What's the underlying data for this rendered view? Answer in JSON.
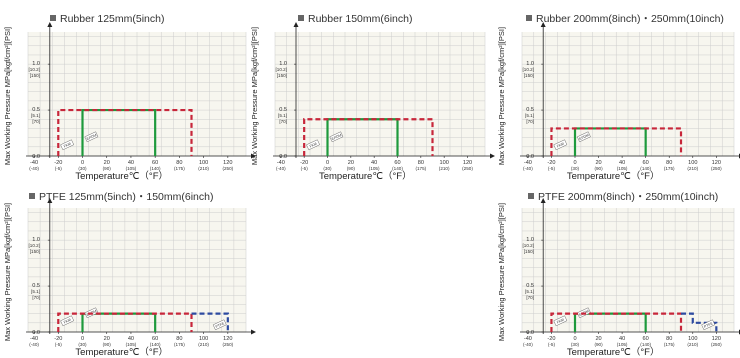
{
  "colors": {
    "grid": "#cdcdcd",
    "plot_bg": "#f7f6ef",
    "axis": "#222222",
    "green": "#1e9a3c",
    "red": "#c7263a",
    "blue": "#2d4aa0",
    "bullet": "#666666"
  },
  "axis_text": {
    "ylabel": "Max Working Pressure MPa[kgf/cm²][PSI]",
    "xlabel": "Temperature℃（°F）",
    "y_ticks": [
      {
        "v": 1.0,
        "l1": "1.0",
        "l2": "[10.2]",
        "l3": "[150]"
      },
      {
        "v": 0.5,
        "l1": "0.5",
        "l2": "[5.1]",
        "l3": "[70]"
      },
      {
        "v": 0.0,
        "l1": "0.0",
        "l2": "",
        "l3": ""
      }
    ],
    "x_ticks": [
      {
        "v": -40,
        "l1": "-40",
        "l2": "(-40)"
      },
      {
        "v": -20,
        "l1": "-20",
        "l2": "(-5)"
      },
      {
        "v": 0,
        "l1": "0",
        "l2": "(30)"
      },
      {
        "v": 20,
        "l1": "20",
        "l2": "(90)"
      },
      {
        "v": 40,
        "l1": "40",
        "l2": "(105)"
      },
      {
        "v": 60,
        "l1": "60",
        "l2": "(140)"
      },
      {
        "v": 80,
        "l1": "80",
        "l2": "(175)"
      },
      {
        "v": 100,
        "l1": "100",
        "l2": "(210)"
      },
      {
        "v": 120,
        "l1": "120",
        "l2": "(250)"
      }
    ]
  },
  "material_labels": {
    "green": "EPDM",
    "red": "FKM",
    "blue": "PTFE"
  },
  "chart_data": [
    {
      "type": "line",
      "title": "Rubber 125mm(5inch)",
      "xlim": [
        -45,
        135
      ],
      "ylim": [
        0,
        1.35
      ],
      "series": [
        {
          "color": "green",
          "style": "solid",
          "x": [
            0,
            0,
            60,
            60
          ],
          "y": [
            0,
            0.5,
            0.5,
            0
          ]
        },
        {
          "color": "red",
          "style": "dashed",
          "x": [
            -20,
            -20,
            90,
            90
          ],
          "y": [
            0,
            0.5,
            0.5,
            0
          ]
        }
      ]
    },
    {
      "type": "line",
      "title": "Rubber 150mm(6inch)",
      "xlim": [
        -45,
        135
      ],
      "ylim": [
        0,
        1.35
      ],
      "series": [
        {
          "color": "green",
          "style": "solid",
          "x": [
            0,
            0,
            60,
            60
          ],
          "y": [
            0,
            0.4,
            0.4,
            0
          ]
        },
        {
          "color": "red",
          "style": "dashed",
          "x": [
            -20,
            -20,
            90,
            90
          ],
          "y": [
            0,
            0.4,
            0.4,
            0
          ]
        }
      ]
    },
    {
      "type": "line",
      "title": "Rubber 200mm(8inch)・250mm(10inch)",
      "xlim": [
        -45,
        135
      ],
      "ylim": [
        0,
        1.35
      ],
      "series": [
        {
          "color": "green",
          "style": "solid",
          "x": [
            0,
            0,
            60,
            60
          ],
          "y": [
            0,
            0.3,
            0.3,
            0
          ]
        },
        {
          "color": "red",
          "style": "dashed",
          "x": [
            -20,
            -20,
            90,
            90
          ],
          "y": [
            0,
            0.3,
            0.3,
            0
          ]
        }
      ]
    },
    {
      "type": "line",
      "title": "PTFE 125mm(5inch)・150mm(6inch)",
      "xlim": [
        -45,
        135
      ],
      "ylim": [
        0,
        1.35
      ],
      "series": [
        {
          "color": "green",
          "style": "solid",
          "x": [
            0,
            0,
            60,
            60
          ],
          "y": [
            0,
            0.2,
            0.2,
            0
          ]
        },
        {
          "color": "red",
          "style": "dashed",
          "x": [
            -20,
            -20,
            90,
            90
          ],
          "y": [
            0,
            0.2,
            0.2,
            0
          ]
        },
        {
          "color": "blue",
          "style": "dashed",
          "x": [
            90,
            120,
            120
          ],
          "y": [
            0.2,
            0.2,
            0
          ]
        }
      ]
    },
    {
      "type": "line",
      "title": "PTFE 200mm(8inch)・250mm(10inch)",
      "xlim": [
        -45,
        135
      ],
      "ylim": [
        0,
        1.35
      ],
      "series": [
        {
          "color": "green",
          "style": "solid",
          "x": [
            0,
            0,
            60,
            60
          ],
          "y": [
            0,
            0.2,
            0.2,
            0
          ]
        },
        {
          "color": "red",
          "style": "dashed",
          "x": [
            -20,
            -20,
            90,
            90
          ],
          "y": [
            0,
            0.2,
            0.2,
            0
          ]
        },
        {
          "color": "blue",
          "style": "dashed",
          "x": [
            90,
            100,
            100,
            120,
            120
          ],
          "y": [
            0.2,
            0.2,
            0.1,
            0.1,
            0
          ]
        }
      ]
    }
  ]
}
